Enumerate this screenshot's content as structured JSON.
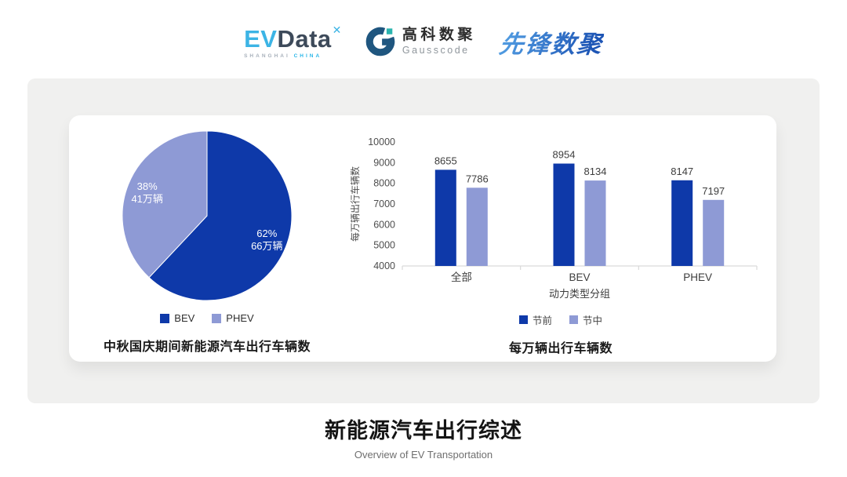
{
  "header": {
    "evdata": {
      "part1": "EV",
      "part2": "Data",
      "sup_icon": "✕",
      "sub_left": "SHANGHAI",
      "sub_right": "CHINA"
    },
    "gausscode": {
      "cn": "高科数聚",
      "en": "Gausscode"
    },
    "pioneer": {
      "text": "先锋数聚"
    }
  },
  "chart_data": [
    {
      "type": "pie",
      "title": "中秋国庆期间新能源汽车出行车辆数",
      "start_angle": "top",
      "direction": "clockwise",
      "label_color": "#ffffff",
      "legend_position": "bottom",
      "slices": [
        {
          "label": "BEV",
          "percent": 62,
          "value_label": "66万辆",
          "color": "#0e39a9"
        },
        {
          "label": "PHEV",
          "percent": 38,
          "value_label": "41万辆",
          "color": "#8e9ad5"
        }
      ]
    },
    {
      "type": "bar",
      "title": "每万辆出行车辆数",
      "categories": [
        "全部",
        "BEV",
        "PHEV"
      ],
      "series": [
        {
          "name": "节前",
          "color": "#0e39a9",
          "values": [
            8655,
            8954,
            8147
          ]
        },
        {
          "name": "节中",
          "color": "#8e9ad5",
          "values": [
            7786,
            8134,
            7197
          ]
        }
      ],
      "xlabel": "动力类型分组",
      "ylabel": "每万辆出行车辆数",
      "ylim": [
        4000,
        10000
      ],
      "ytick_step": 1000,
      "grid": false,
      "legend_position": "bottom"
    }
  ],
  "footer": {
    "title": "新能源汽车出行综述",
    "subtitle": "Overview of EV Transportation"
  },
  "colors": {
    "dark_blue": "#0e39a9",
    "light_purple": "#8e9ad5",
    "panel_bg": "#f0f0ef",
    "evdata_blue": "#3cb4e5",
    "evdata_dark": "#3d4a5a",
    "gauss_navy": "#1f567f",
    "gauss_teal": "#2ab4ae",
    "pioneer_blue": "#2e6dce",
    "axis_gray": "#d9d9d9",
    "tick_text": "#4d4d4d",
    "value_text": "#3d3d3d"
  }
}
